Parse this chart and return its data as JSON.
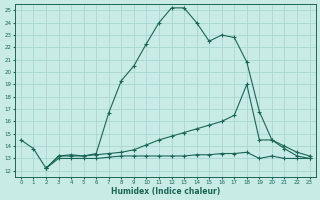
{
  "xlabel": "Humidex (Indice chaleur)",
  "xlim": [
    -0.5,
    23.5
  ],
  "ylim": [
    11.5,
    25.5
  ],
  "x_ticks": [
    0,
    1,
    2,
    3,
    4,
    5,
    6,
    7,
    8,
    9,
    10,
    11,
    12,
    13,
    14,
    15,
    16,
    17,
    18,
    19,
    20,
    21,
    22,
    23
  ],
  "y_ticks": [
    12,
    13,
    14,
    15,
    16,
    17,
    18,
    19,
    20,
    21,
    22,
    23,
    24,
    25
  ],
  "background_color": "#c8ebe6",
  "grid_color": "#a8d8d0",
  "line_color": "#1a6655",
  "line1_x": [
    0,
    1,
    2,
    3,
    4,
    5,
    6,
    7,
    8,
    9,
    10,
    11,
    12,
    13,
    14,
    15,
    16,
    17,
    18,
    19,
    20,
    21,
    22,
    23
  ],
  "line1_y": [
    14.5,
    13.8,
    12.2,
    13.2,
    13.3,
    13.2,
    13.4,
    16.7,
    19.3,
    20.5,
    22.3,
    24.0,
    25.2,
    25.2,
    24.0,
    22.5,
    23.0,
    22.8,
    20.8,
    16.8,
    14.5,
    13.8,
    13.2,
    13.0
  ],
  "line2_x": [
    2,
    3,
    4,
    5,
    6,
    7,
    8,
    9,
    10,
    11,
    12,
    13,
    14,
    15,
    16,
    17,
    18,
    19,
    20,
    21,
    22,
    23
  ],
  "line2_y": [
    12.2,
    13.2,
    13.2,
    13.2,
    13.3,
    13.4,
    13.5,
    13.7,
    14.1,
    14.5,
    14.8,
    15.1,
    15.4,
    15.7,
    16.0,
    16.5,
    19.0,
    14.5,
    14.5,
    14.0,
    13.5,
    13.2
  ],
  "line3_x": [
    2,
    3,
    4,
    5,
    6,
    7,
    8,
    9,
    10,
    11,
    12,
    13,
    14,
    15,
    16,
    17,
    18,
    19,
    20,
    21,
    22,
    23
  ],
  "line3_y": [
    12.2,
    13.0,
    13.0,
    13.0,
    13.0,
    13.1,
    13.2,
    13.2,
    13.2,
    13.2,
    13.2,
    13.2,
    13.3,
    13.3,
    13.4,
    13.4,
    13.5,
    13.0,
    13.2,
    13.0,
    13.0,
    13.0
  ]
}
